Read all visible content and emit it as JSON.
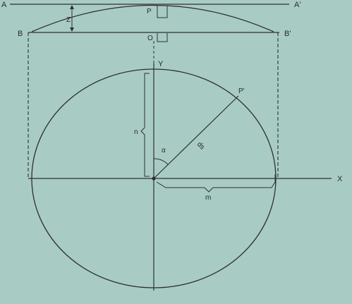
{
  "diagram": {
    "labels": {
      "A": "A",
      "A_prime": "A'",
      "B": "B",
      "B_prime": "B'",
      "P": "P",
      "O": "O",
      "Z": "Z",
      "Y": "Y",
      "X": "X",
      "P_prime": "P'",
      "n": "n",
      "m": "m",
      "alpha": "α",
      "ds": "ds"
    }
  },
  "colors": {
    "background": "#a8ccc4",
    "line": "#2f2f2f",
    "text": "#2a2a2a"
  }
}
